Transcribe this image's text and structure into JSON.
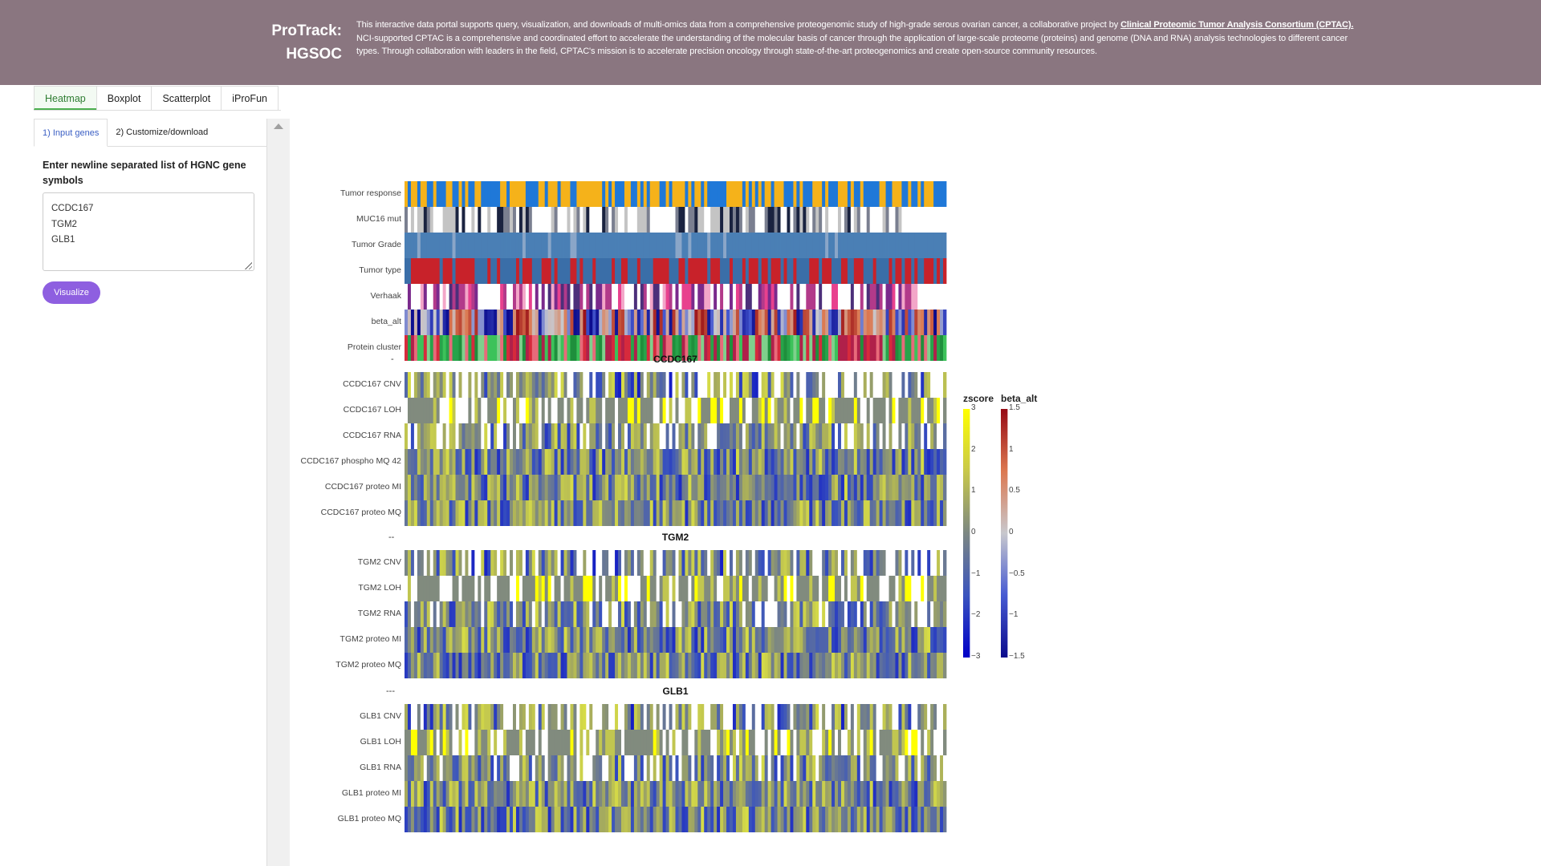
{
  "header": {
    "brand_line1": "ProTrack:",
    "brand_line2": "HGSOC",
    "description_part1": "This interactive data portal supports query, visualization, and downloads of multi-omics data from a comprehensive proteogenomic study of high-grade serous ovarian cancer, a collaborative project by ",
    "link_text": "Clinical Proteomic Tumor Analysis Consortium (CPTAC).",
    "description_part2": " NCI-supported CPTAC is a comprehensive and coordinated effort to accelerate the understanding of the molecular basis of cancer through the application of large-scale proteome (proteins) and genome (DNA and RNA) analysis technologies to different cancer types. Through collaboration with leaders in the field, CPTAC's mission is to accelerate precision oncology through state-of-the-art proteogenomics and create open-source community resources."
  },
  "tabs": [
    {
      "label": "Heatmap",
      "active": true
    },
    {
      "label": "Boxplot",
      "active": false
    },
    {
      "label": "Scatterplot",
      "active": false
    },
    {
      "label": "iProFun",
      "active": false
    }
  ],
  "sidebar": {
    "subtabs": [
      {
        "label": "1) Input genes",
        "active": true
      },
      {
        "label": "2) Customize/download",
        "active": false
      }
    ],
    "input_label": "Enter newline separated list of HGNC gene symbols",
    "genes_value": "CCDC167\nTGM2\nGLB1",
    "visualize_label": "Visualize"
  },
  "heatmap": {
    "annotation_rows": [
      {
        "label": "Tumor response",
        "palette": "response"
      },
      {
        "label": "MUC16 mut",
        "palette": "mut"
      },
      {
        "label": "Tumor Grade",
        "palette": "grade"
      },
      {
        "label": "Tumor type",
        "palette": "type"
      },
      {
        "label": "Verhaak",
        "palette": "verhaak"
      },
      {
        "label": "beta_alt",
        "palette": "beta"
      },
      {
        "label": "Protein cluster",
        "palette": "cluster"
      }
    ],
    "gene_blocks": [
      {
        "dash": "-",
        "gene": "CCDC167",
        "rows": [
          "CCDC167 CNV",
          "CCDC167 LOH",
          "CCDC167 RNA",
          "CCDC167 phospho MQ 42",
          "CCDC167 proteo MI",
          "CCDC167 proteo MQ"
        ]
      },
      {
        "dash": "--",
        "gene": "TGM2",
        "rows": [
          "TGM2 CNV",
          "TGM2 LOH",
          "TGM2 RNA",
          "TGM2 proteo MI",
          "TGM2 proteo MQ"
        ]
      },
      {
        "dash": "---",
        "gene": "GLB1",
        "rows": [
          "GLB1 CNV",
          "GLB1 LOH",
          "GLB1 RNA",
          "GLB1 proteo MI",
          "GLB1 proteo MQ"
        ]
      }
    ],
    "legend": {
      "zscore": {
        "title": "zscore",
        "ticks": [
          "3",
          "2",
          "1",
          "0",
          "−1",
          "−2",
          "−3"
        ]
      },
      "beta_alt": {
        "title": "beta_alt",
        "ticks": [
          "1.5",
          "1",
          "0.5",
          "0",
          "−0.5",
          "−1",
          "−1.5"
        ]
      }
    }
  }
}
